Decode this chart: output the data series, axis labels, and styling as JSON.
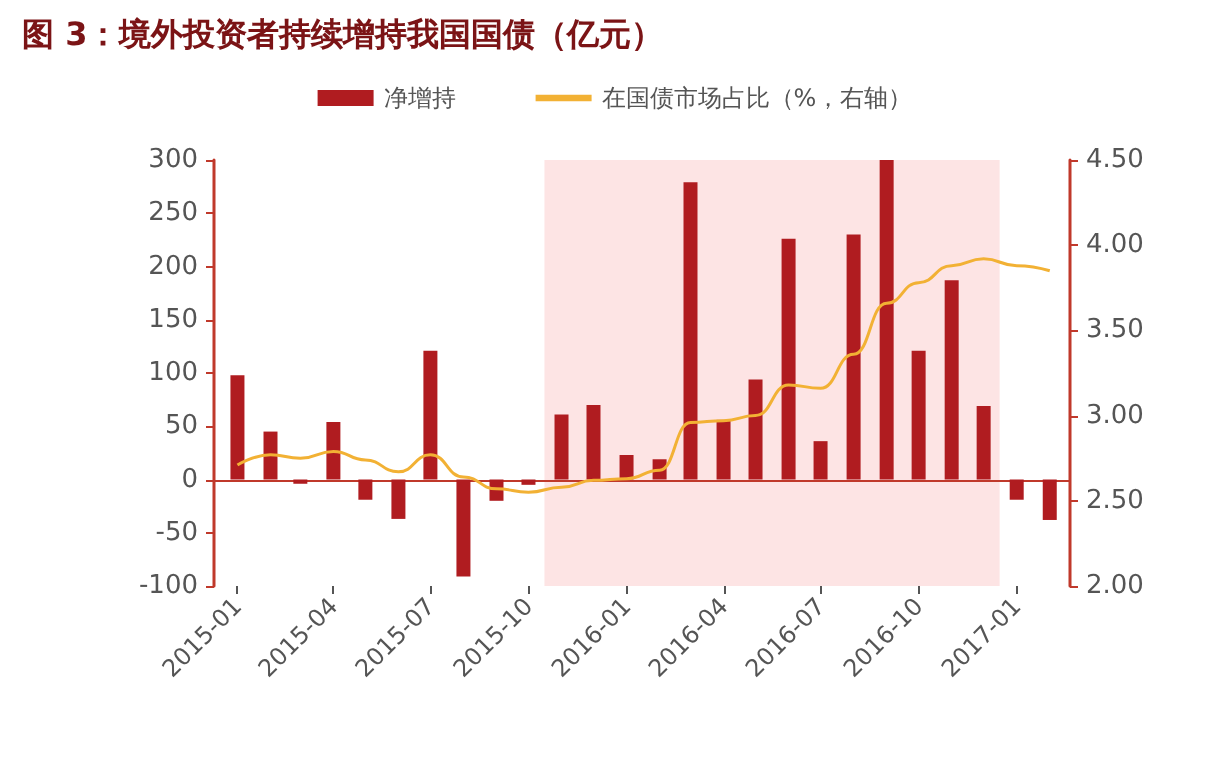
{
  "chart_data": {
    "type": "bar",
    "title": "图 3：境外投资者持续增持我国国债（亿元）",
    "x": [
      "2015-01",
      "2015-02",
      "2015-03",
      "2015-04",
      "2015-05",
      "2015-06",
      "2015-07",
      "2015-08",
      "2015-09",
      "2015-10",
      "2015-11",
      "2015-12",
      "2016-01",
      "2016-02",
      "2016-03",
      "2016-04",
      "2016-05",
      "2016-06",
      "2016-07",
      "2016-08",
      "2016-09",
      "2016-10",
      "2016-11",
      "2016-12",
      "2017-01",
      "2017-02"
    ],
    "xlim": [
      "2014-12-10",
      "2017-02-20"
    ],
    "xticks": [
      "2015-01",
      "2015-04",
      "2015-07",
      "2015-10",
      "2016-01",
      "2016-04",
      "2016-07",
      "2016-10",
      "2017-01"
    ],
    "series": [
      {
        "name": "净增持",
        "color": "#b01c20",
        "values": [
          98,
          45,
          -4,
          54,
          -19,
          -37,
          121,
          -91,
          -20,
          -5,
          61,
          70,
          23,
          19,
          279,
          56,
          94,
          226,
          36,
          230,
          300,
          121,
          187,
          69,
          -19,
          -38
        ]
      },
      {
        "name": "在国债市场占比（%，右轴）",
        "type": "line",
        "axis": "y2",
        "color": "#f2b134",
        "values": [
          2.71,
          2.77,
          2.75,
          2.79,
          2.74,
          2.67,
          2.77,
          2.64,
          2.57,
          2.55,
          2.58,
          2.62,
          2.63,
          2.68,
          2.96,
          2.97,
          3.0,
          3.18,
          3.16,
          3.36,
          3.66,
          3.78,
          3.88,
          3.92,
          3.88,
          3.85
        ]
      }
    ],
    "ylim": [
      -100,
      300
    ],
    "yticks": [
      -100,
      -50,
      0,
      50,
      100,
      150,
      200,
      250,
      300
    ],
    "y2lim": [
      2,
      4.5
    ],
    "y2ticks": [
      {
        "value": 2,
        "label": "2.00"
      },
      {
        "value": 2.5,
        "label": "2.50"
      },
      {
        "value": 3,
        "label": "3.00"
      },
      {
        "value": 3.5,
        "label": "3.50"
      },
      {
        "value": 4,
        "label": "4.00"
      },
      {
        "value": 4.5,
        "label": "4.50"
      }
    ],
    "ref_lines": [
      {
        "axis": "y",
        "value": 0,
        "color": "#c0392b"
      }
    ],
    "bands": [
      {
        "axis": "x",
        "from": "2015-10-16",
        "to": "2016-12-16",
        "color": "#fde4e4"
      }
    ],
    "legend": "top",
    "grid": false,
    "marker": "none",
    "line_style": "solid"
  }
}
